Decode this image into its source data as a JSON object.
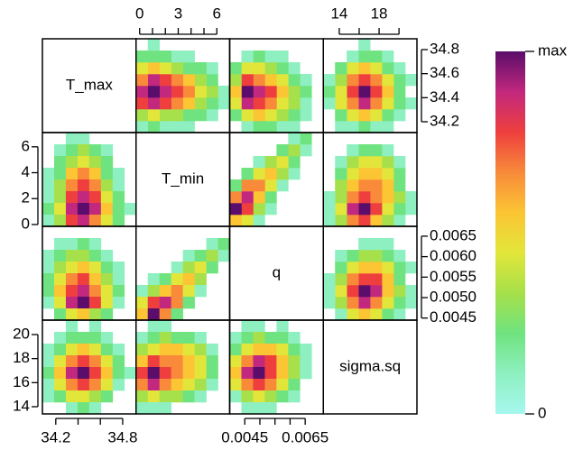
{
  "chart_data": {
    "type": "pairs-heatmap",
    "variables": [
      {
        "name": "T_max",
        "xlim": [
          34.08,
          34.92
        ],
        "ylim": [
          34.11,
          34.89
        ],
        "xticks": [
          34.2,
          34.8
        ],
        "xminorticks": [
          34.4,
          34.6
        ],
        "yticks": [
          34.2,
          34.4,
          34.6,
          34.8
        ]
      },
      {
        "name": "T_min",
        "xlim": [
          -0.28,
          7.0
        ],
        "ylim": [
          -0.14,
          7.1
        ],
        "xticks": [
          0,
          3,
          6
        ],
        "xminorticks": [
          1,
          2,
          4,
          5
        ],
        "yticks": [
          0,
          2,
          4,
          6
        ]
      },
      {
        "name": "q",
        "xlim": [
          0.004,
          0.0071
        ],
        "ylim": [
          0.00445,
          0.00674
        ],
        "xticks": [
          0.0045,
          0.0065
        ],
        "xminorticks": [
          {
            "value": 0.005,
            "label": "0.0050"
          },
          0.0055,
          {
            "value": 0.006,
            "label": "0.0060"
          }
        ],
        "yticks": [
          0.0045,
          {
            "value": 0.005,
            "label": "0.0050"
          },
          0.0055,
          {
            "value": 0.006,
            "label": "0.0060"
          },
          0.0065
        ]
      },
      {
        "name": "sigma.sq",
        "xlim": [
          12.4,
          21.8
        ],
        "ylim": [
          13.4,
          21.2
        ],
        "xticks": [
          14,
          18
        ],
        "xminorticks": [
          16,
          20
        ],
        "yticks": [
          14,
          16,
          18,
          20
        ]
      }
    ],
    "pairs": [
      {
        "values": [
          [
            null,
            null,
            1,
            1,
            null,
            null,
            null,
            null
          ],
          [
            null,
            1,
            2,
            3,
            2,
            1,
            null,
            null
          ],
          [
            null,
            2,
            3,
            4,
            3,
            2,
            null,
            null
          ],
          [
            1,
            2,
            5,
            6,
            5,
            2,
            1,
            null
          ],
          [
            1,
            3,
            6,
            7,
            6,
            3,
            1,
            null
          ],
          [
            1,
            3,
            7,
            8,
            7,
            4,
            2,
            null
          ],
          [
            2,
            4,
            8,
            9,
            8,
            5,
            2,
            1
          ],
          [
            1,
            3,
            7,
            8,
            6,
            4,
            2,
            null
          ]
        ]
      },
      {
        "values": [
          [
            null,
            null,
            null,
            null,
            null,
            null,
            null,
            null
          ],
          [
            null,
            1,
            1,
            2,
            1,
            null,
            null,
            null
          ],
          [
            1,
            2,
            3,
            3,
            2,
            1,
            null,
            null
          ],
          [
            1,
            3,
            4,
            5,
            4,
            2,
            1,
            null
          ],
          [
            2,
            4,
            6,
            7,
            5,
            3,
            1,
            null
          ],
          [
            2,
            5,
            7,
            8,
            6,
            4,
            2,
            null
          ],
          [
            1,
            4,
            8,
            9,
            7,
            4,
            1,
            null
          ],
          [
            null,
            2,
            4,
            5,
            3,
            2,
            null,
            null
          ]
        ]
      },
      {
        "values": [
          [
            null,
            null,
            1,
            null,
            1,
            null,
            null,
            null
          ],
          [
            null,
            1,
            2,
            2,
            2,
            1,
            null,
            null
          ],
          [
            1,
            2,
            4,
            5,
            4,
            2,
            1,
            null
          ],
          [
            1,
            4,
            6,
            7,
            6,
            4,
            2,
            null
          ],
          [
            2,
            5,
            8,
            9,
            7,
            5,
            2,
            1
          ],
          [
            1,
            4,
            6,
            7,
            6,
            4,
            1,
            null
          ],
          [
            1,
            2,
            4,
            4,
            3,
            2,
            null,
            null
          ],
          [
            null,
            null,
            1,
            2,
            1,
            null,
            null,
            null
          ]
        ]
      },
      {
        "values": [
          [
            null,
            null,
            null,
            null,
            null,
            null,
            null,
            null
          ],
          [
            null,
            null,
            null,
            null,
            null,
            null,
            1,
            2
          ],
          [
            null,
            null,
            null,
            null,
            1,
            2,
            3,
            1
          ],
          [
            null,
            null,
            null,
            1,
            3,
            4,
            2,
            null
          ],
          [
            null,
            1,
            2,
            4,
            5,
            3,
            null,
            null
          ],
          [
            1,
            3,
            5,
            6,
            4,
            1,
            null,
            null
          ],
          [
            4,
            7,
            8,
            6,
            2,
            null,
            null,
            null
          ],
          [
            5,
            9,
            6,
            2,
            null,
            null,
            null,
            null
          ]
        ]
      },
      {
        "values": [
          [
            null,
            1,
            1,
            null,
            null,
            null,
            null,
            null
          ],
          [
            1,
            2,
            3,
            2,
            2,
            1,
            null,
            null
          ],
          [
            3,
            4,
            5,
            5,
            4,
            3,
            1,
            null
          ],
          [
            5,
            7,
            6,
            6,
            5,
            4,
            2,
            null
          ],
          [
            7,
            9,
            7,
            6,
            5,
            4,
            2,
            null
          ],
          [
            6,
            8,
            6,
            5,
            4,
            3,
            1,
            null
          ],
          [
            3,
            4,
            3,
            3,
            2,
            1,
            null,
            null
          ],
          [
            1,
            1,
            1,
            null,
            null,
            null,
            null,
            null
          ]
        ]
      },
      {
        "values": [
          [
            null,
            1,
            1,
            null,
            1,
            null,
            null,
            null
          ],
          [
            1,
            2,
            3,
            2,
            2,
            1,
            null,
            null
          ],
          [
            2,
            4,
            5,
            5,
            4,
            2,
            1,
            null
          ],
          [
            4,
            6,
            8,
            7,
            5,
            3,
            1,
            null
          ],
          [
            5,
            8,
            9,
            7,
            5,
            3,
            1,
            null
          ],
          [
            4,
            6,
            7,
            6,
            4,
            2,
            null,
            null
          ],
          [
            1,
            3,
            4,
            3,
            2,
            1,
            null,
            null
          ],
          [
            null,
            1,
            1,
            1,
            null,
            null,
            null,
            null
          ]
        ]
      }
    ],
    "colorbar": {
      "zlim": [
        0,
        9
      ],
      "ticks": [
        0,
        {
          "value": 9,
          "label": "max"
        }
      ],
      "colors": [
        "#a7f7ee",
        "#8ef0c0",
        "#6fe37f",
        "#a6e04a",
        "#e2e63a",
        "#fbc534",
        "#f88a3a",
        "#ee3f3e",
        "#c2287e",
        "#5a0d6a"
      ]
    }
  }
}
